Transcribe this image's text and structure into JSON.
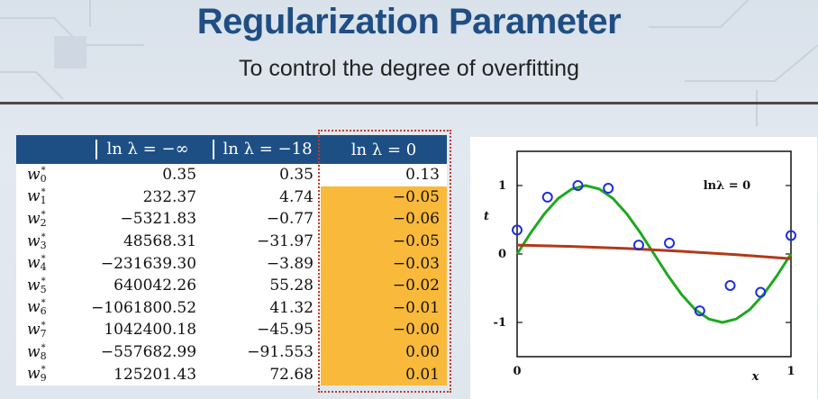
{
  "slide": {
    "title": "Regularization Parameter",
    "subtitle": "To control the degree of overfitting"
  },
  "table": {
    "headers": [
      "ln λ = −∞",
      "ln λ = −18",
      "ln λ = 0"
    ],
    "rows": [
      {
        "w": "w",
        "sub": "0",
        "sup": "*",
        "a": "0.35",
        "b": "0.35",
        "c": "0.13"
      },
      {
        "w": "w",
        "sub": "1",
        "sup": "*",
        "a": "232.37",
        "b": "4.74",
        "c": "−0.05"
      },
      {
        "w": "w",
        "sub": "2",
        "sup": "*",
        "a": "−5321.83",
        "b": "−0.77",
        "c": "−0.06"
      },
      {
        "w": "w",
        "sub": "3",
        "sup": "*",
        "a": "48568.31",
        "b": "−31.97",
        "c": "−0.05"
      },
      {
        "w": "w",
        "sub": "4",
        "sup": "*",
        "a": "−231639.30",
        "b": "−3.89",
        "c": "−0.03"
      },
      {
        "w": "w",
        "sub": "5",
        "sup": "*",
        "a": "640042.26",
        "b": "55.28",
        "c": "−0.02"
      },
      {
        "w": "w",
        "sub": "6",
        "sup": "*",
        "a": "−1061800.52",
        "b": "41.32",
        "c": "−0.01"
      },
      {
        "w": "w",
        "sub": "7",
        "sup": "*",
        "a": "1042400.18",
        "b": "−45.95",
        "c": "−0.00"
      },
      {
        "w": "w",
        "sub": "8",
        "sup": "*",
        "a": "−557682.99",
        "b": "−91.553",
        "c": "0.00"
      },
      {
        "w": "w",
        "sub": "9",
        "sup": "*",
        "a": "125201.43",
        "b": "72.68",
        "c": "0.01"
      }
    ],
    "highlight_from_row": 1,
    "highlight_color": "#f9b93a",
    "header_color": "#1d4f85"
  },
  "chart_data": {
    "type": "line",
    "annotation": "lnλ = 0",
    "xlabel": "x",
    "ylabel": "t",
    "xlim": [
      0,
      1
    ],
    "ylim": [
      -1.5,
      1.5
    ],
    "xticks": [
      "0",
      "1"
    ],
    "yticks": [
      "1",
      "0",
      "-1"
    ],
    "series": [
      {
        "color": "#1fa81f",
        "type": "line",
        "x": [
          0,
          0.05,
          0.1,
          0.15,
          0.2,
          0.25,
          0.3,
          0.35,
          0.4,
          0.45,
          0.5,
          0.55,
          0.6,
          0.65,
          0.7,
          0.75,
          0.8,
          0.85,
          0.9,
          0.95,
          1.0
        ],
        "y": [
          0.0,
          0.31,
          0.59,
          0.81,
          0.95,
          1.0,
          0.95,
          0.81,
          0.59,
          0.31,
          0.0,
          -0.31,
          -0.59,
          -0.81,
          -0.95,
          -1.0,
          -0.95,
          -0.81,
          -0.59,
          -0.31,
          0.0
        ]
      },
      {
        "color": "#b03a1a",
        "type": "line",
        "x": [
          0,
          0.2,
          0.4,
          0.6,
          0.8,
          1.0
        ],
        "y": [
          0.13,
          0.11,
          0.08,
          0.04,
          -0.01,
          -0.07
        ]
      },
      {
        "color": "#1c2fe0",
        "type": "scatter",
        "x": [
          0.0,
          0.111,
          0.222,
          0.333,
          0.444,
          0.556,
          0.667,
          0.778,
          0.889,
          1.0
        ],
        "y": [
          0.35,
          0.83,
          1.0,
          0.96,
          0.13,
          0.16,
          -0.83,
          -0.46,
          -0.56,
          0.27
        ]
      }
    ]
  }
}
